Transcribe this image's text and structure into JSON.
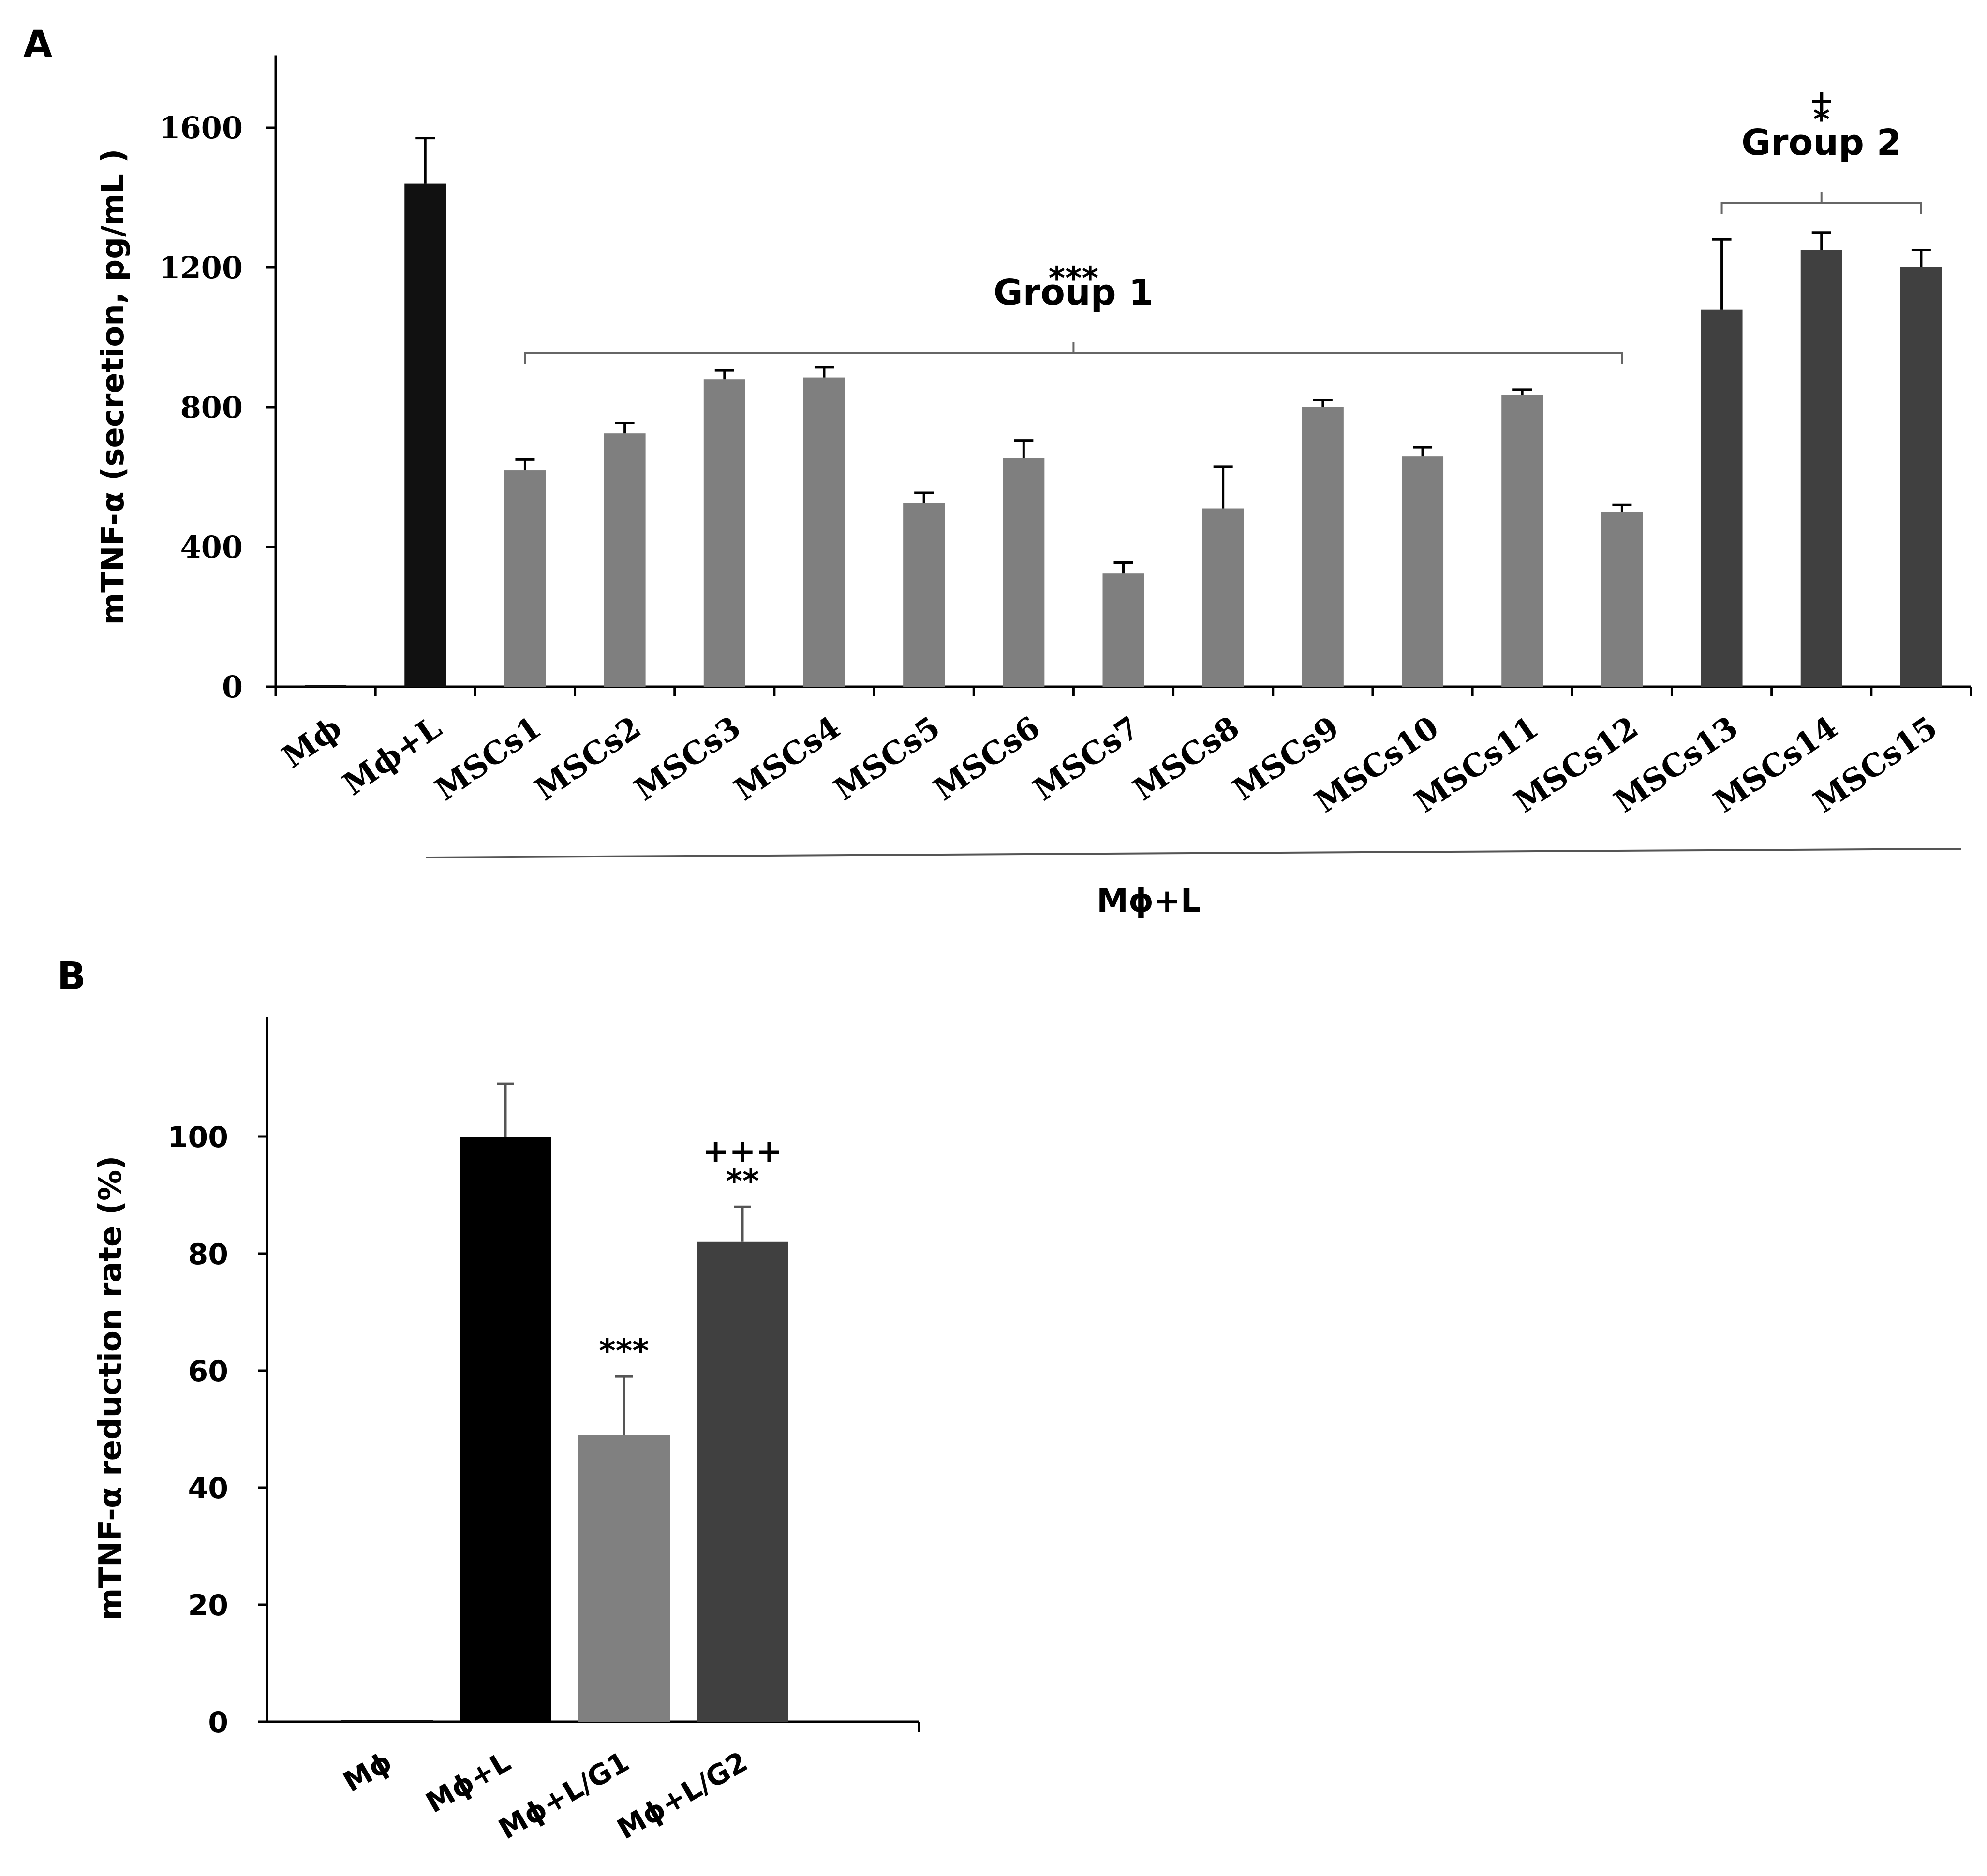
{
  "chart_data": [
    {
      "panel": "A",
      "type": "bar",
      "ylabel": "mTNF-α (secretion, pg/mL )",
      "xgroup_label": "Mϕ+L",
      "yticks": [
        0,
        400,
        800,
        1200,
        1600
      ],
      "ylim": [
        0,
        1800
      ],
      "grid": false,
      "categories": [
        "Mϕ",
        "Mϕ+L",
        "MSCs1",
        "MSCs2",
        "MSCs3",
        "MSCs4",
        "MSCs5",
        "MSCs6",
        "MSCs7",
        "MSCs8",
        "MSCs9",
        "MSCs10",
        "MSCs11",
        "MSCs12",
        "MSCs13",
        "MSCs14",
        "MSCs15"
      ],
      "values": [
        5,
        1440,
        620,
        725,
        880,
        885,
        525,
        655,
        325,
        510,
        800,
        660,
        835,
        500,
        1080,
        1250,
        1200
      ],
      "errors": [
        0,
        130,
        30,
        30,
        25,
        30,
        30,
        50,
        30,
        120,
        20,
        25,
        15,
        20,
        200,
        50,
        50
      ],
      "colors": [
        "#111111",
        "#111111",
        "#7f7f7f",
        "#7f7f7f",
        "#7f7f7f",
        "#7f7f7f",
        "#7f7f7f",
        "#7f7f7f",
        "#7f7f7f",
        "#7f7f7f",
        "#7f7f7f",
        "#7f7f7f",
        "#7f7f7f",
        "#7f7f7f",
        "#404040",
        "#404040",
        "#404040"
      ],
      "brackets": [
        {
          "label": "Group 1",
          "sig": "***",
          "extra": "",
          "from": 2,
          "to": 13
        },
        {
          "label": "Group 2",
          "sig": "*",
          "extra": "+",
          "from": 14,
          "to": 16
        }
      ]
    },
    {
      "panel": "B",
      "type": "bar",
      "ylabel": "mTNF-α reduction rate (%)",
      "yticks": [
        0,
        20,
        40,
        60,
        80,
        100
      ],
      "ylim": [
        0,
        120
      ],
      "grid": false,
      "categories": [
        "Mϕ",
        "Mϕ+L",
        "Mϕ+L/G1",
        "Mϕ+L/G2"
      ],
      "values": [
        0.3,
        100,
        49,
        82
      ],
      "errors": [
        0,
        9,
        10,
        6
      ],
      "colors": [
        "#111111",
        "#000000",
        "#808080",
        "#404040"
      ],
      "annotations": [
        {
          "bar": 2,
          "lines": [
            "***"
          ]
        },
        {
          "bar": 3,
          "lines": [
            "+++",
            "**"
          ]
        }
      ]
    }
  ]
}
